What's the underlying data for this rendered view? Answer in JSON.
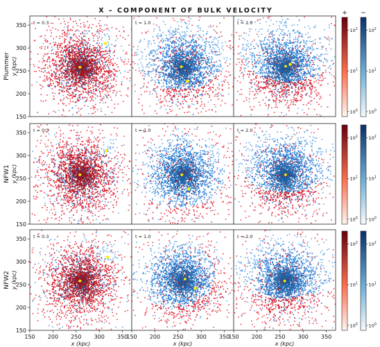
{
  "chart_data": {
    "type": "heatmap",
    "title": "X – COMPONENT OF BULK VELOCITY",
    "rows": [
      "Plummer",
      "NFW1",
      "NFW2"
    ],
    "ylabel": "y (kpc)",
    "xlabel": "x (kpc)",
    "col_labels": [
      "t = 0.3",
      "t = 1.0",
      "t = 2.0"
    ],
    "xlim": [
      150,
      370
    ],
    "ylim": [
      150,
      370
    ],
    "xticks": [
      150,
      200,
      250,
      300,
      350
    ],
    "yticks": [
      150,
      200,
      250,
      300,
      350
    ],
    "colorbar_pos_label": "+",
    "colorbar_neg_label": "−",
    "colorbar_ticks": [
      "10^0",
      "10^1",
      "10^2"
    ],
    "colorbar_scale": "log",
    "colors": {
      "positive": "#b2182b",
      "negative": "#1f67ad",
      "marker": "#ffee00"
    },
    "panels": [
      {
        "row": 0,
        "col": 0,
        "markers": [
          [
            258,
            258
          ],
          [
            313,
            310
          ]
        ],
        "blue": [
          [
            318,
            318,
            22,
            1.0
          ]
        ]
      },
      {
        "row": 0,
        "col": 1,
        "markers": [
          [
            257,
            259
          ],
          [
            270,
            227
          ]
        ],
        "blue": [
          [
            255,
            285,
            75,
            1.3
          ]
        ]
      },
      {
        "row": 0,
        "col": 2,
        "markers": [
          [
            262,
            260
          ],
          [
            272,
            264
          ]
        ],
        "blue": [
          [
            268,
            300,
            72,
            1.5
          ]
        ]
      },
      {
        "row": 1,
        "col": 0,
        "markers": [
          [
            258,
            258
          ],
          [
            315,
            310
          ]
        ],
        "blue": [
          [
            322,
            320,
            20,
            1.0
          ]
        ]
      },
      {
        "row": 1,
        "col": 1,
        "markers": [
          [
            258,
            258
          ],
          [
            273,
            227
          ]
        ],
        "blue": [
          [
            252,
            268,
            80,
            1.3
          ]
        ]
      },
      {
        "row": 1,
        "col": 2,
        "markers": [
          [
            262,
            258
          ]
        ],
        "blue": [
          [
            262,
            292,
            70,
            1.6
          ]
        ]
      },
      {
        "row": 2,
        "col": 0,
        "markers": [
          [
            258,
            258
          ],
          [
            318,
            310
          ]
        ],
        "blue": [
          [
            322,
            322,
            22,
            1.0
          ]
        ]
      },
      {
        "row": 2,
        "col": 1,
        "markers": [
          [
            265,
            262
          ],
          [
            287,
            242
          ]
        ],
        "blue": [
          [
            235,
            275,
            72,
            1.3
          ]
        ]
      },
      {
        "row": 2,
        "col": 2,
        "markers": [
          [
            260,
            258
          ]
        ],
        "blue": [
          [
            262,
            292,
            70,
            1.6
          ]
        ]
      }
    ]
  }
}
